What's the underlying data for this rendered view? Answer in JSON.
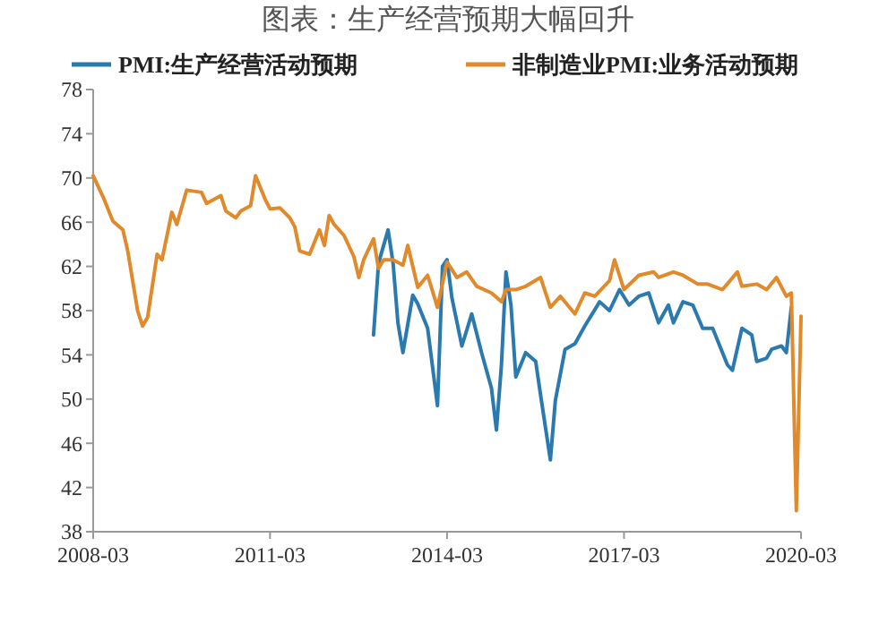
{
  "chart_data": {
    "type": "line",
    "title": "图表：生产经营预期大幅回升",
    "xlim": [
      "2008-03",
      "2020-03"
    ],
    "xticks": [
      "2008-03",
      "2011-03",
      "2014-03",
      "2017-03",
      "2020-03"
    ],
    "ylim": [
      38,
      78
    ],
    "yticks": [
      38,
      42,
      46,
      50,
      54,
      58,
      62,
      66,
      70,
      74,
      78
    ],
    "grid": false,
    "legend": "top",
    "marker": "none",
    "line_style": "solid",
    "series": [
      {
        "name": "PMI:生产经营活动预期",
        "color": "#2a7ab0",
        "x": [
          "2012-12",
          "2013-01",
          "2013-03",
          "2013-04",
          "2013-05",
          "2013-06",
          "2013-08",
          "2013-09",
          "2013-11",
          "2014-01",
          "2014-02",
          "2014-03",
          "2014-04",
          "2014-06",
          "2014-08",
          "2014-10",
          "2014-12",
          "2015-01",
          "2015-02",
          "2015-03",
          "2015-04",
          "2015-05",
          "2015-07",
          "2015-09",
          "2015-10",
          "2015-12",
          "2016-01",
          "2016-03",
          "2016-05",
          "2016-07",
          "2016-10",
          "2016-12",
          "2017-02",
          "2017-04",
          "2017-06",
          "2017-08",
          "2017-10",
          "2017-12",
          "2018-01",
          "2018-03",
          "2018-05",
          "2018-07",
          "2018-09",
          "2018-12",
          "2019-01",
          "2019-03",
          "2019-05",
          "2019-06",
          "2019-08",
          "2019-09",
          "2019-11",
          "2019-12",
          "2020-01"
        ],
        "values": [
          55.8,
          62.3,
          65.3,
          62.3,
          56.9,
          54.2,
          59.4,
          58.6,
          56.4,
          49.4,
          62,
          62.6,
          59.1,
          54.8,
          57.7,
          54.2,
          51,
          47.2,
          53.1,
          61.5,
          58.5,
          52,
          54.2,
          53.4,
          50.4,
          44.5,
          49.9,
          54.5,
          55,
          56.6,
          58.8,
          58,
          59.9,
          58.5,
          59.3,
          59.6,
          56.9,
          58.5,
          56.9,
          58.8,
          58.5,
          56.4,
          56.4,
          53.1,
          52.6,
          56.4,
          55.8,
          53.4,
          53.7,
          54.5,
          54.8,
          54.2,
          58.3
        ]
      },
      {
        "name": "非制造业PMI:业务活动预期",
        "color": "#e08a2c",
        "x": [
          "2008-03",
          "2008-05",
          "2008-07",
          "2008-09",
          "2008-10",
          "2008-12",
          "2009-01",
          "2009-02",
          "2009-04",
          "2009-05",
          "2009-07",
          "2009-08",
          "2009-10",
          "2010-01",
          "2010-02",
          "2010-05",
          "2010-06",
          "2010-08",
          "2010-09",
          "2010-11",
          "2010-12",
          "2011-02",
          "2011-03",
          "2011-05",
          "2011-07",
          "2011-08",
          "2011-09",
          "2011-11",
          "2012-01",
          "2012-02",
          "2012-03",
          "2012-04",
          "2012-06",
          "2012-08",
          "2012-09",
          "2012-10",
          "2012-12",
          "2013-01",
          "2013-02",
          "2013-04",
          "2013-06",
          "2013-07",
          "2013-09",
          "2013-11",
          "2014-01",
          "2014-03",
          "2014-05",
          "2014-07",
          "2014-09",
          "2014-12",
          "2015-02",
          "2015-03",
          "2015-05",
          "2015-07",
          "2015-10",
          "2015-12",
          "2016-02",
          "2016-05",
          "2016-07",
          "2016-09",
          "2016-12",
          "2017-01",
          "2017-03",
          "2017-06",
          "2017-09",
          "2017-10",
          "2018-01",
          "2018-03",
          "2018-06",
          "2018-08",
          "2018-11",
          "2019-02",
          "2019-03",
          "2019-06",
          "2019-08",
          "2019-10",
          "2019-12",
          "2020-01",
          "2020-02",
          "2020-03"
        ],
        "values": [
          70.2,
          68.3,
          66.1,
          65.3,
          63.4,
          58,
          56.6,
          57.4,
          63.1,
          62.6,
          66.9,
          65.8,
          68.9,
          68.7,
          67.7,
          68.4,
          67,
          66.4,
          67,
          67.5,
          70.2,
          68,
          67.2,
          67.3,
          66.4,
          65.6,
          63.4,
          63.1,
          65.3,
          63.9,
          66.6,
          65.8,
          64.8,
          62.9,
          61,
          62.6,
          64.5,
          61.8,
          62.6,
          62.6,
          62.1,
          63.9,
          60.1,
          61.2,
          58.3,
          62.4,
          61,
          61.5,
          60.2,
          59.6,
          58.8,
          59.9,
          59.9,
          60.2,
          61,
          58.3,
          59.3,
          57.7,
          59.6,
          59.3,
          60.7,
          62.6,
          59.9,
          61.2,
          61.5,
          61,
          61.5,
          61.2,
          60.4,
          60.4,
          59.9,
          61.5,
          60.2,
          60.4,
          59.9,
          61,
          59.3,
          59.6,
          39.9,
          57.5
        ]
      }
    ]
  }
}
